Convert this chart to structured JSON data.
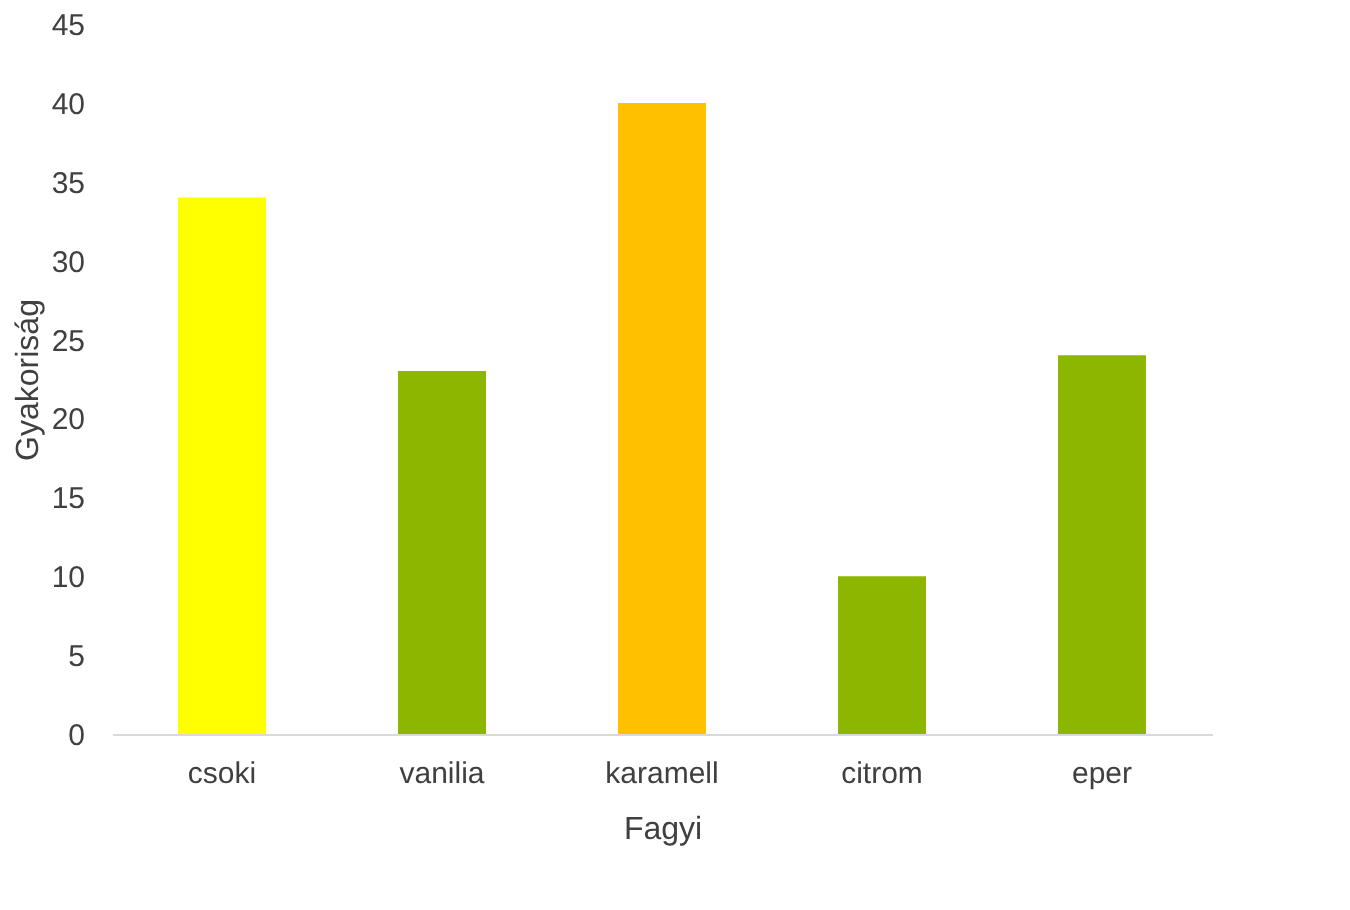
{
  "chart_data": {
    "type": "bar",
    "xlabel": "Fagyi",
    "ylabel": "Gyakoriság",
    "categories": [
      "csoki",
      "vanilia",
      "karamell",
      "citrom",
      "eper"
    ],
    "values": [
      34,
      23,
      40,
      10,
      24
    ],
    "colors": [
      "#ffff00",
      "#8db600",
      "#ffc000",
      "#8db600",
      "#8db600"
    ],
    "ylim": [
      0,
      45
    ],
    "yticks": [
      0,
      5,
      10,
      15,
      20,
      25,
      30,
      35,
      40,
      45
    ],
    "grid": false
  }
}
